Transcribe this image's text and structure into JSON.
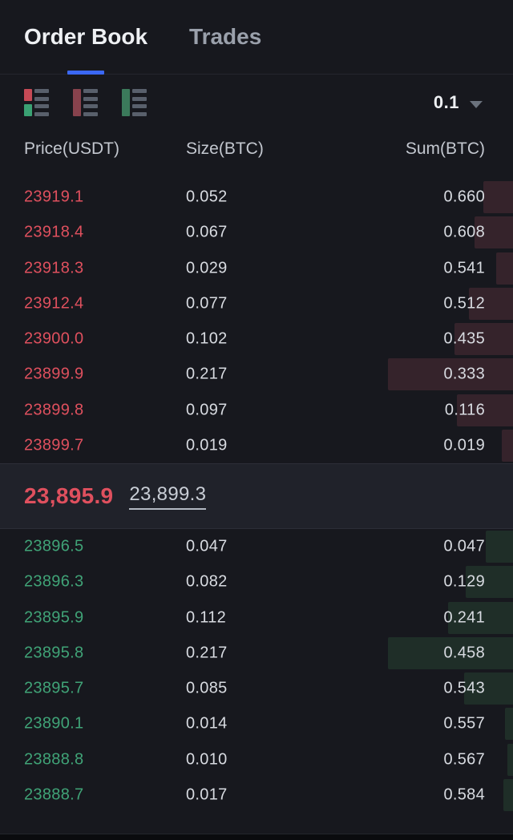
{
  "tabs": [
    {
      "label": "Order Book",
      "active": true
    },
    {
      "label": "Trades",
      "active": false
    }
  ],
  "controls": {
    "precision": "0.1",
    "view_modes": [
      "default-split",
      "sell-only",
      "buy-only"
    ]
  },
  "table": {
    "columns": [
      "Price(USDT)",
      "Size(BTC)",
      "Sum(BTC)"
    ]
  },
  "asks": [
    {
      "price": "23919.1",
      "size": "0.052",
      "sum": "0.660"
    },
    {
      "price": "23918.4",
      "size": "0.067",
      "sum": "0.608"
    },
    {
      "price": "23918.3",
      "size": "0.029",
      "sum": "0.541"
    },
    {
      "price": "23912.4",
      "size": "0.077",
      "sum": "0.512"
    },
    {
      "price": "23900.0",
      "size": "0.102",
      "sum": "0.435"
    },
    {
      "price": "23899.9",
      "size": "0.217",
      "sum": "0.333"
    },
    {
      "price": "23899.8",
      "size": "0.097",
      "sum": "0.116"
    },
    {
      "price": "23899.7",
      "size": "0.019",
      "sum": "0.019"
    }
  ],
  "mid": {
    "last_price": "23,895.9",
    "mark_price": "23,899.3"
  },
  "bids": [
    {
      "price": "23896.5",
      "size": "0.047",
      "sum": "0.047"
    },
    {
      "price": "23896.3",
      "size": "0.082",
      "sum": "0.129"
    },
    {
      "price": "23895.9",
      "size": "0.112",
      "sum": "0.241"
    },
    {
      "price": "23895.8",
      "size": "0.217",
      "sum": "0.458"
    },
    {
      "price": "23895.7",
      "size": "0.085",
      "sum": "0.543"
    },
    {
      "price": "23890.1",
      "size": "0.014",
      "sum": "0.557"
    },
    {
      "price": "23888.8",
      "size": "0.010",
      "sum": "0.567"
    },
    {
      "price": "23888.7",
      "size": "0.017",
      "sum": "0.584"
    }
  ],
  "colors": {
    "ask": "#df505e",
    "bid": "#40a377",
    "ask_bar": "#35232b",
    "bid_bar": "#1f2e28",
    "accent": "#3b68f4",
    "icon_red_active": "#c64a56",
    "icon_green_active": "#3aa173",
    "icon_red_muted": "#87424d",
    "icon_green_muted": "#3b7a5b"
  }
}
